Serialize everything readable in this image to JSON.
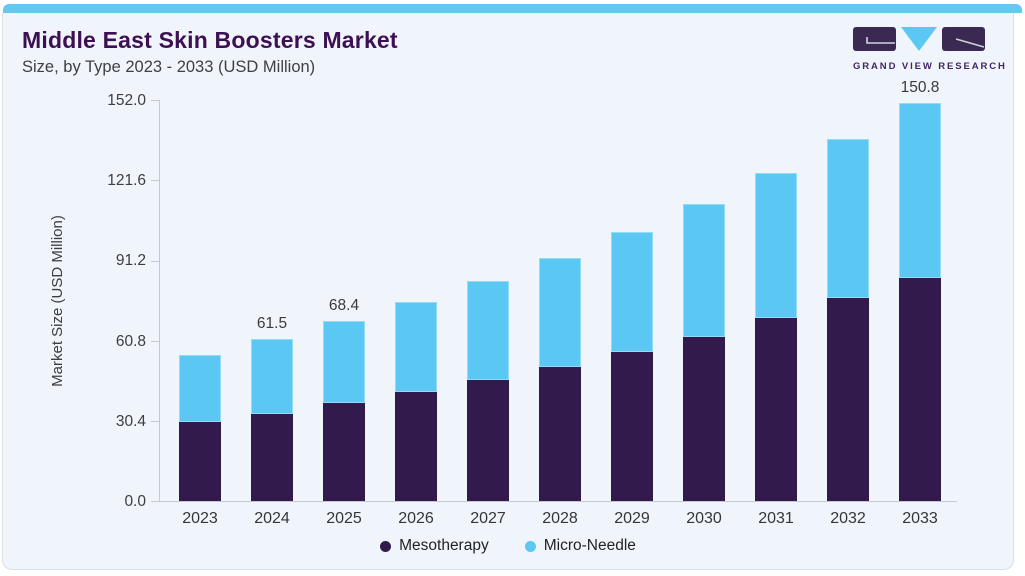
{
  "header": {
    "title": "Middle East Skin Boosters Market",
    "subtitle": "Size, by Type 2023 - 2033 (USD Million)"
  },
  "logo": {
    "brand": "GRAND VIEW RESEARCH"
  },
  "colors": {
    "accent_bar": "#66c7ef",
    "title": "#3c1053",
    "logo_purple": "#3a2a52",
    "logo_blue": "#5ac8f2",
    "mesotherapy": "#321a4d",
    "micro_needle": "#5ac8f2"
  },
  "chart_data": {
    "type": "bar",
    "stacked": true,
    "title": "Middle East Skin Boosters Market",
    "subtitle": "Size, by Type 2023 - 2033 (USD Million)",
    "ylabel": "Market Size (USD Million)",
    "xlabel": "",
    "categories": [
      "2023",
      "2024",
      "2025",
      "2026",
      "2027",
      "2028",
      "2029",
      "2030",
      "2031",
      "2032",
      "2033"
    ],
    "series": [
      {
        "name": "Mesotherapy",
        "color": "#321a4d",
        "values": [
          29.8,
          33.1,
          37.3,
          41.5,
          45.7,
          50.7,
          56.6,
          62.3,
          69.2,
          76.8,
          84.7
        ]
      },
      {
        "name": "Micro-Needle",
        "color": "#5ac8f2",
        "values": [
          25.6,
          28.4,
          31.1,
          34.1,
          37.7,
          41.4,
          45.2,
          50.2,
          55.2,
          60.4,
          66.1
        ]
      }
    ],
    "totals": [
      55.4,
      61.5,
      68.4,
      75.6,
      83.4,
      92.1,
      101.8,
      112.5,
      124.4,
      137.2,
      150.8
    ],
    "value_labels": [
      "",
      "61.5",
      "68.4",
      "",
      "",
      "",
      "",
      "",
      "",
      "",
      "150.8"
    ],
    "yticks": [
      0.0,
      30.4,
      60.8,
      91.2,
      121.6,
      152.0
    ],
    "ylim": [
      0,
      152
    ],
    "grid": false,
    "legend_position": "bottom"
  }
}
